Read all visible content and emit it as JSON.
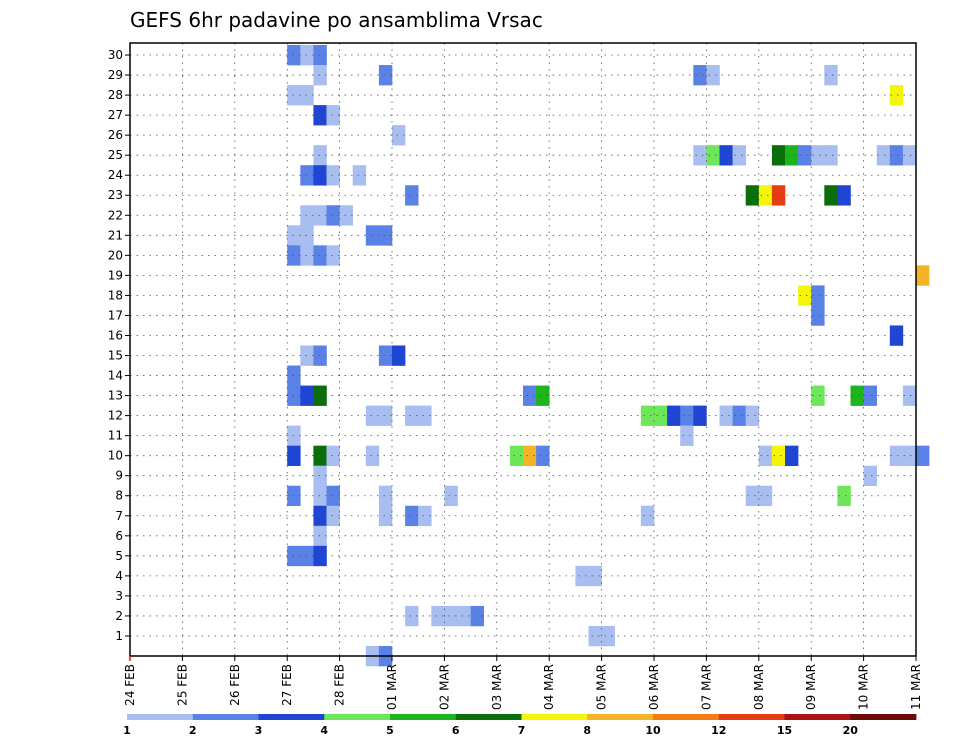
{
  "chart_data": {
    "type": "heatmap",
    "title": "GEFS 6hr padavine po ansamblima Vrsac",
    "x_tick_labels": [
      "24 FEB",
      "25 FEB",
      "26 FEB",
      "27 FEB",
      "28 FEB",
      "01 MAR",
      "02 MAR",
      "03 MAR",
      "04 MAR",
      "05 MAR",
      "06 MAR",
      "07 MAR",
      "08 MAR",
      "09 MAR",
      "10 MAR",
      "11 MAR"
    ],
    "y_tick_labels": [
      "1",
      "2",
      "3",
      "4",
      "5",
      "6",
      "7",
      "8",
      "9",
      "10",
      "11",
      "12",
      "13",
      "14",
      "15",
      "16",
      "17",
      "18",
      "19",
      "20",
      "21",
      "22",
      "23",
      "24",
      "25",
      "26",
      "27",
      "28",
      "29",
      "30"
    ],
    "x_range": [
      "24 FEB 00z",
      "11 MAR 00z"
    ],
    "x_step": "6hr",
    "y_range": [
      0,
      30
    ],
    "grid": true,
    "levels": [
      1,
      2,
      3,
      4,
      5,
      6,
      7,
      8,
      10,
      12,
      15,
      20
    ],
    "level_colors": [
      "#a8bef0",
      "#5a82e6",
      "#1e46d2",
      "#6ee65a",
      "#1eb41e",
      "#0a6e0a",
      "#f5f50a",
      "#f5b428",
      "#f57d14",
      "#e63c14",
      "#aa1414",
      "#6e0a0a"
    ],
    "cells_comment_units": "step = 6hr index from 24 FEB 00z; member = ensemble row; class = colour index into level_colors",
    "cells": [
      {
        "member": 30,
        "step": 12,
        "class": 1
      },
      {
        "member": 30,
        "step": 13,
        "class": 0
      },
      {
        "member": 30,
        "step": 14,
        "class": 1
      },
      {
        "member": 29,
        "step": 14,
        "class": 0
      },
      {
        "member": 29,
        "step": 19,
        "class": 1
      },
      {
        "member": 29,
        "step": 43,
        "class": 1
      },
      {
        "member": 29,
        "step": 44,
        "class": 0
      },
      {
        "member": 29,
        "step": 53,
        "class": 0
      },
      {
        "member": 28,
        "step": 12,
        "class": 0
      },
      {
        "member": 28,
        "step": 13,
        "class": 0
      },
      {
        "member": 28,
        "step": 58,
        "class": 6
      },
      {
        "member": 27,
        "step": 14,
        "class": 2
      },
      {
        "member": 27,
        "step": 15,
        "class": 0
      },
      {
        "member": 26,
        "step": 20,
        "class": 0
      },
      {
        "member": 25,
        "step": 14,
        "class": 0
      },
      {
        "member": 25,
        "step": 43,
        "class": 0
      },
      {
        "member": 25,
        "step": 44,
        "class": 3
      },
      {
        "member": 25,
        "step": 45,
        "class": 2
      },
      {
        "member": 25,
        "step": 46,
        "class": 0
      },
      {
        "member": 25,
        "step": 49,
        "class": 5
      },
      {
        "member": 25,
        "step": 50,
        "class": 4
      },
      {
        "member": 25,
        "step": 51,
        "class": 1
      },
      {
        "member": 25,
        "step": 52,
        "class": 0
      },
      {
        "member": 25,
        "step": 53,
        "class": 0
      },
      {
        "member": 25,
        "step": 57,
        "class": 0
      },
      {
        "member": 25,
        "step": 58,
        "class": 1
      },
      {
        "member": 25,
        "step": 59,
        "class": 0
      },
      {
        "member": 24,
        "step": 13,
        "class": 1
      },
      {
        "member": 24,
        "step": 14,
        "class": 2
      },
      {
        "member": 24,
        "step": 15,
        "class": 0
      },
      {
        "member": 24,
        "step": 17,
        "class": 0
      },
      {
        "member": 23,
        "step": 21,
        "class": 1
      },
      {
        "member": 23,
        "step": 47,
        "class": 5
      },
      {
        "member": 23,
        "step": 48,
        "class": 6
      },
      {
        "member": 23,
        "step": 49,
        "class": 9
      },
      {
        "member": 23,
        "step": 53,
        "class": 5
      },
      {
        "member": 23,
        "step": 54,
        "class": 2
      },
      {
        "member": 22,
        "step": 13,
        "class": 0
      },
      {
        "member": 22,
        "step": 14,
        "class": 0
      },
      {
        "member": 22,
        "step": 15,
        "class": 1
      },
      {
        "member": 22,
        "step": 16,
        "class": 0
      },
      {
        "member": 21,
        "step": 12,
        "class": 0
      },
      {
        "member": 21,
        "step": 13,
        "class": 0
      },
      {
        "member": 21,
        "step": 18,
        "class": 1
      },
      {
        "member": 21,
        "step": 19,
        "class": 1
      },
      {
        "member": 20,
        "step": 12,
        "class": 1
      },
      {
        "member": 20,
        "step": 13,
        "class": 0
      },
      {
        "member": 20,
        "step": 14,
        "class": 1
      },
      {
        "member": 20,
        "step": 15,
        "class": 0
      },
      {
        "member": 19,
        "step": 60,
        "class": 7
      },
      {
        "member": 18,
        "step": 51,
        "class": 6
      },
      {
        "member": 18,
        "step": 52,
        "class": 1
      },
      {
        "member": 17,
        "step": 52,
        "class": 1
      },
      {
        "member": 16,
        "step": 58,
        "class": 2
      },
      {
        "member": 15,
        "step": 13,
        "class": 0
      },
      {
        "member": 15,
        "step": 14,
        "class": 1
      },
      {
        "member": 15,
        "step": 19,
        "class": 1
      },
      {
        "member": 15,
        "step": 20,
        "class": 2
      },
      {
        "member": 14,
        "step": 12,
        "class": 1
      },
      {
        "member": 13,
        "step": 12,
        "class": 1
      },
      {
        "member": 13,
        "step": 13,
        "class": 2
      },
      {
        "member": 13,
        "step": 14,
        "class": 5
      },
      {
        "member": 13,
        "step": 30,
        "class": 1
      },
      {
        "member": 13,
        "step": 31,
        "class": 4
      },
      {
        "member": 13,
        "step": 52,
        "class": 3
      },
      {
        "member": 13,
        "step": 55,
        "class": 4
      },
      {
        "member": 13,
        "step": 56,
        "class": 1
      },
      {
        "member": 13,
        "step": 59,
        "class": 0
      },
      {
        "member": 12,
        "step": 18,
        "class": 0
      },
      {
        "member": 12,
        "step": 19,
        "class": 0
      },
      {
        "member": 12,
        "step": 21,
        "class": 0
      },
      {
        "member": 12,
        "step": 22,
        "class": 0
      },
      {
        "member": 12,
        "step": 39,
        "class": 3
      },
      {
        "member": 12,
        "step": 40,
        "class": 3
      },
      {
        "member": 12,
        "step": 41,
        "class": 2
      },
      {
        "member": 12,
        "step": 42,
        "class": 1
      },
      {
        "member": 12,
        "step": 43,
        "class": 2
      },
      {
        "member": 12,
        "step": 45,
        "class": 0
      },
      {
        "member": 12,
        "step": 46,
        "class": 1
      },
      {
        "member": 12,
        "step": 47,
        "class": 0
      },
      {
        "member": 11,
        "step": 12,
        "class": 0
      },
      {
        "member": 11,
        "step": 42,
        "class": 0
      },
      {
        "member": 10,
        "step": 12,
        "class": 2
      },
      {
        "member": 10,
        "step": 14,
        "class": 5
      },
      {
        "member": 10,
        "step": 15,
        "class": 0
      },
      {
        "member": 10,
        "step": 18,
        "class": 0
      },
      {
        "member": 10,
        "step": 29,
        "class": 3
      },
      {
        "member": 10,
        "step": 30,
        "class": 7
      },
      {
        "member": 10,
        "step": 31,
        "class": 1
      },
      {
        "member": 10,
        "step": 48,
        "class": 0
      },
      {
        "member": 10,
        "step": 49,
        "class": 6
      },
      {
        "member": 10,
        "step": 50,
        "class": 2
      },
      {
        "member": 10,
        "step": 58,
        "class": 0
      },
      {
        "member": 10,
        "step": 59,
        "class": 0
      },
      {
        "member": 10,
        "step": 60,
        "class": 1
      },
      {
        "member": 9,
        "step": 14,
        "class": 0
      },
      {
        "member": 9,
        "step": 56,
        "class": 0
      },
      {
        "member": 8,
        "step": 12,
        "class": 1
      },
      {
        "member": 8,
        "step": 14,
        "class": 0
      },
      {
        "member": 8,
        "step": 15,
        "class": 1
      },
      {
        "member": 8,
        "step": 19,
        "class": 0
      },
      {
        "member": 8,
        "step": 24,
        "class": 0
      },
      {
        "member": 8,
        "step": 47,
        "class": 0
      },
      {
        "member": 8,
        "step": 48,
        "class": 0
      },
      {
        "member": 8,
        "step": 54,
        "class": 3
      },
      {
        "member": 7,
        "step": 14,
        "class": 2
      },
      {
        "member": 7,
        "step": 15,
        "class": 0
      },
      {
        "member": 7,
        "step": 19,
        "class": 0
      },
      {
        "member": 7,
        "step": 21,
        "class": 1
      },
      {
        "member": 7,
        "step": 22,
        "class": 0
      },
      {
        "member": 7,
        "step": 39,
        "class": 0
      },
      {
        "member": 6,
        "step": 14,
        "class": 0
      },
      {
        "member": 5,
        "step": 12,
        "class": 1
      },
      {
        "member": 5,
        "step": 13,
        "class": 1
      },
      {
        "member": 5,
        "step": 14,
        "class": 2
      },
      {
        "member": 4,
        "step": 34,
        "class": 0
      },
      {
        "member": 4,
        "step": 35,
        "class": 0
      },
      {
        "member": 2,
        "step": 21,
        "class": 0
      },
      {
        "member": 2,
        "step": 23,
        "class": 0
      },
      {
        "member": 2,
        "step": 24,
        "class": 0
      },
      {
        "member": 2,
        "step": 25,
        "class": 0
      },
      {
        "member": 2,
        "step": 26,
        "class": 1
      },
      {
        "member": 1,
        "step": 35,
        "class": 0
      },
      {
        "member": 1,
        "step": 36,
        "class": 0
      },
      {
        "member": 0,
        "step": 18,
        "class": 0
      },
      {
        "member": 0,
        "step": 19,
        "class": 1
      }
    ],
    "colorbar_labels": [
      "1",
      "2",
      "3",
      "4",
      "5",
      "6",
      "7",
      "8",
      "10",
      "12",
      "15",
      "20"
    ]
  }
}
